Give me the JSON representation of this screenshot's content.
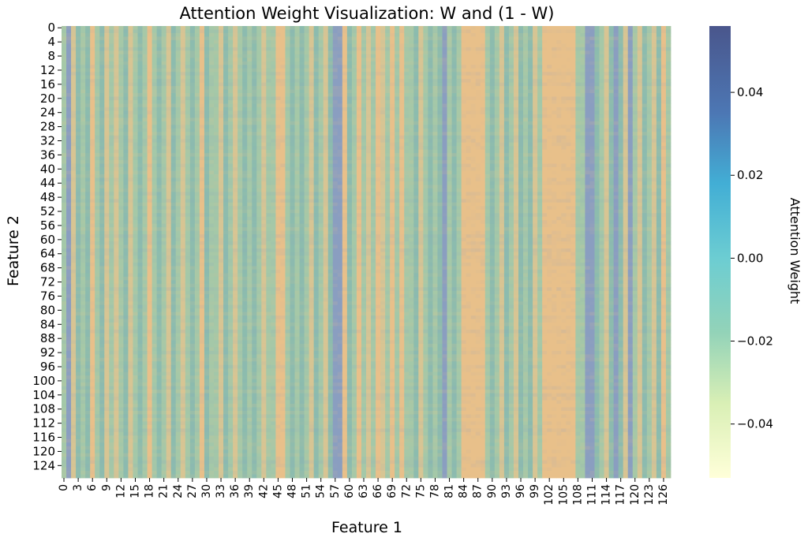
{
  "chart_data": {
    "type": "heatmap",
    "title": "Attention Weight Visualization: W and (1 - W)",
    "xlabel": "Feature 1",
    "ylabel": "Feature 2",
    "n_cols": 128,
    "n_rows": 128,
    "x_tick_step": 3,
    "y_tick_step": 4,
    "colorbar": {
      "label": "Attention Weight",
      "colormap": "YlGnBu",
      "range": [
        -0.053,
        0.056
      ],
      "ticks": [
        0.04,
        0.02,
        0.0,
        -0.02,
        -0.04
      ],
      "tick_labels": [
        "0.04",
        "0.02",
        "0.00",
        "−0.02",
        "−0.04"
      ],
      "stops": [
        {
          "v": -0.053,
          "color": "#ffffd9"
        },
        {
          "v": -0.035,
          "color": "#d9efb5"
        },
        {
          "v": -0.018,
          "color": "#93d3b8"
        },
        {
          "v": 0.0,
          "color": "#6ccdd2"
        },
        {
          "v": 0.018,
          "color": "#42aed5"
        },
        {
          "v": 0.035,
          "color": "#4c77b4"
        },
        {
          "v": 0.056,
          "color": "#4a568c"
        }
      ]
    },
    "cell_palette": {
      "peach": "#e8c08a",
      "tan": "#d6c594",
      "mint": "#a4c8a8",
      "teal": "#8cbcae",
      "blue": "#8a9ec0"
    },
    "column_profile": {
      "peach_columns": [
        6,
        18,
        29,
        45,
        46,
        59,
        62,
        66,
        69,
        71,
        84,
        85,
        86,
        87,
        88,
        101,
        102,
        103,
        104,
        105,
        106,
        107,
        126
      ],
      "tan_columns": [
        2,
        9,
        11,
        14,
        22,
        25,
        33,
        36,
        42,
        52,
        55,
        64,
        67,
        75,
        92,
        95,
        99,
        114,
        118,
        121,
        124
      ],
      "blue_columns": [
        1,
        57,
        58,
        80,
        110,
        111,
        116,
        119
      ],
      "teal_columns": [
        3,
        5,
        8,
        13,
        16,
        20,
        23,
        27,
        30,
        34,
        38,
        40,
        48,
        50,
        53,
        56,
        60,
        74,
        77,
        79,
        82,
        90,
        93,
        96,
        98,
        112,
        115,
        117,
        122,
        125
      ]
    }
  }
}
